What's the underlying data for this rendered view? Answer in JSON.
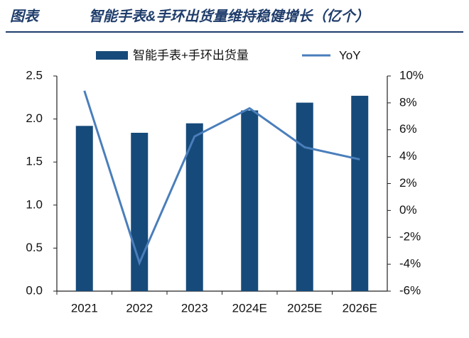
{
  "chart_data": {
    "type": "bar",
    "label": "图表",
    "title": "智能手表&手环出货量维持稳健增长（亿个）",
    "categories": [
      "2021",
      "2022",
      "2023",
      "2024E",
      "2025E",
      "2026E"
    ],
    "series": [
      {
        "name": "智能手表+手环出货量",
        "type": "bar",
        "color": "#164a7a",
        "values": [
          1.92,
          1.84,
          1.95,
          2.1,
          2.19,
          2.27
        ]
      },
      {
        "name": "YoY",
        "type": "line",
        "axis": "y2",
        "color": "#4a7ebb",
        "values": [
          8.9,
          -3.9,
          5.5,
          7.6,
          4.7,
          3.8
        ]
      }
    ],
    "ylim": [
      0,
      2.5
    ],
    "yticks": [
      {
        "value": 0,
        "label": "0.0"
      },
      0.5,
      {
        "value": 1,
        "label": "1.0"
      },
      1.5,
      {
        "value": 2,
        "label": "2.0"
      },
      2.5
    ],
    "y2lim": [
      -6,
      10
    ],
    "y2ticks": [
      {
        "value": -6,
        "label": "-6%"
      },
      {
        "value": -4,
        "label": "-4%"
      },
      {
        "value": -2,
        "label": "-2%"
      },
      {
        "value": 0,
        "label": "0%"
      },
      {
        "value": 2,
        "label": "2%"
      },
      {
        "value": 4,
        "label": "4%"
      },
      {
        "value": 6,
        "label": "6%"
      },
      {
        "value": 8,
        "label": "8%"
      },
      {
        "value": 10,
        "label": "10%"
      }
    ],
    "grid": false
  }
}
